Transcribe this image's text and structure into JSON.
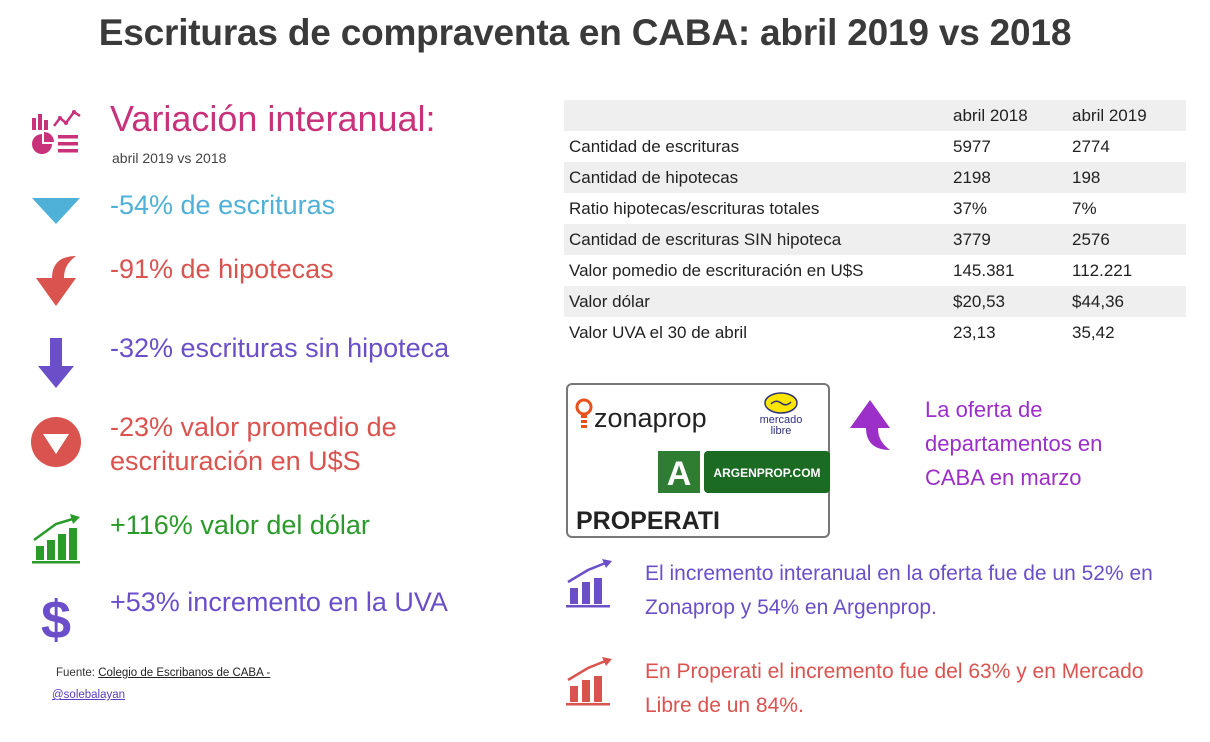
{
  "title": "Escrituras de compraventa en CABA: abril 2019 vs 2018",
  "left": {
    "heading": "Variación interanual:",
    "subheading": "abril 2019 vs 2018",
    "stats": [
      {
        "text": "-54% de escrituras",
        "color": "#4fb0d8",
        "icon": "triangle-down-icon"
      },
      {
        "text": "-91% de hipotecas",
        "color": "#d9534f",
        "icon": "curved-down-arrow-icon"
      },
      {
        "text": "-32% escrituras sin hipoteca",
        "color": "#6a4fc8",
        "icon": "down-arrow-icon"
      },
      {
        "text_line1": "-23% valor promedio de",
        "text_line2": "escrituración en U$S",
        "color": "#d9534f",
        "icon": "circle-down-icon"
      },
      {
        "text": "+116% valor del dólar",
        "color": "#2a9a2a",
        "icon": "growth-chart-icon"
      },
      {
        "text": "+53% incremento en la UVA",
        "color": "#6a4fc8",
        "icon": "dollar-icon"
      }
    ],
    "source_label": "Fuente:",
    "source_link": "Colegio de  Escribanos de CABA  -",
    "handle": "@solebalayan"
  },
  "table": {
    "headers": [
      "",
      "abril 2018",
      "abril 2019"
    ],
    "rows": [
      [
        "Cantidad de escrituras",
        "5977",
        "2774"
      ],
      [
        "Cantidad de hipotecas",
        "2198",
        "198"
      ],
      [
        "Ratio hipotecas/escrituras totales",
        "37%",
        "7%"
      ],
      [
        "Cantidad de escrituras SIN hipoteca",
        "3779",
        "2576"
      ],
      [
        "Valor pomedio de escrituración en U$S",
        "145.381",
        "112.221"
      ],
      [
        "Valor dólar",
        "$20,53",
        "$44,36"
      ],
      [
        "Valor UVA el  30 de abril",
        "23,13",
        "35,42"
      ]
    ]
  },
  "logos": {
    "zonaprop": "zonaprop",
    "mercadolibre_line1": "mercado",
    "mercadolibre_line2": "libre",
    "argenprop": "ARGENPROP.COM",
    "argenprop_letter": "A",
    "properati": "PROPERATI"
  },
  "oferta": {
    "line1": "La oferta de",
    "line2": "departamentos en",
    "line3": "CABA en marzo",
    "color": "#9b2fc8"
  },
  "notes": [
    {
      "line1": "El incremento interanual en la oferta fue de un 52% en",
      "line2": "Zonaprop y 54% en Argenprop.",
      "color": "#6a4fc8"
    },
    {
      "line1": "En Properati el incremento fue del 63% y en Mercado",
      "line2": "Libre de un 84%.",
      "color": "#d9534f"
    }
  ],
  "colors": {
    "title": "#3a3a3a",
    "heading": "#c8327a",
    "blue": "#4fb0d8",
    "red": "#d9534f",
    "purple": "#6a4fc8",
    "green": "#2a9a2a"
  }
}
